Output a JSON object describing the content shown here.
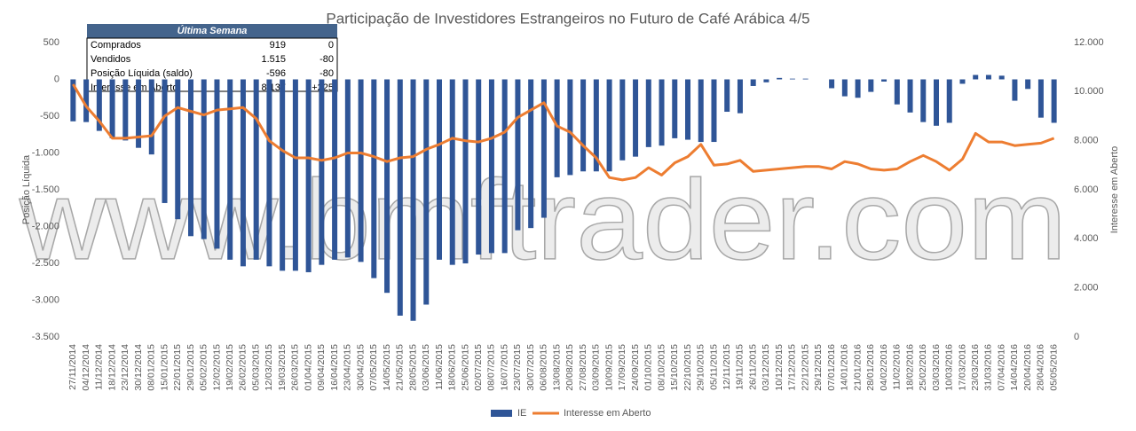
{
  "chart_data": {
    "type": "bar_line",
    "title": "Participação de Investidores Estrangeiros no Futuro de Café Arábica 4/5",
    "watermark": "www.bmftrader.com",
    "y_label": "Posição Líquida",
    "y2_label": "Interesse em Aberto",
    "categories": [
      "27/11/2014",
      "04/12/2014",
      "11/12/2014",
      "18/12/2014",
      "23/12/2014",
      "30/12/2014",
      "08/01/2015",
      "15/01/2015",
      "22/01/2015",
      "29/01/2015",
      "05/02/2015",
      "12/02/2015",
      "19/02/2015",
      "26/02/2015",
      "05/03/2015",
      "12/03/2015",
      "19/03/2015",
      "26/03/2015",
      "01/04/2015",
      "09/04/2015",
      "16/04/2015",
      "23/04/2015",
      "30/04/2015",
      "07/05/2015",
      "14/05/2015",
      "21/05/2015",
      "28/05/2015",
      "03/06/2015",
      "11/06/2015",
      "18/06/2015",
      "25/06/2015",
      "02/07/2015",
      "08/07/2015",
      "16/07/2015",
      "23/07/2015",
      "30/07/2015",
      "06/08/2015",
      "13/08/2015",
      "20/08/2015",
      "27/08/2015",
      "03/09/2015",
      "10/09/2015",
      "17/09/2015",
      "24/09/2015",
      "01/10/2015",
      "08/10/2015",
      "15/10/2015",
      "22/10/2015",
      "29/10/2015",
      "05/11/2015",
      "12/11/2015",
      "19/11/2015",
      "26/11/2015",
      "03/12/2015",
      "10/12/2015",
      "17/12/2015",
      "22/12/2015",
      "29/12/2015",
      "07/01/2016",
      "14/01/2016",
      "21/01/2016",
      "28/01/2016",
      "04/02/2016",
      "11/02/2016",
      "18/02/2016",
      "25/02/2016",
      "03/03/2016",
      "10/03/2016",
      "17/03/2016",
      "23/03/2016",
      "31/03/2016",
      "07/04/2016",
      "14/04/2016",
      "20/04/2016",
      "28/04/2016",
      "05/05/2016"
    ],
    "series": [
      {
        "name": "IE",
        "type": "bar",
        "color": "#2f5597",
        "values": [
          -570,
          -580,
          -700,
          -800,
          -830,
          -930,
          -1020,
          -1680,
          -1900,
          -2130,
          -2170,
          -2300,
          -2450,
          -2540,
          -2450,
          -2540,
          -2600,
          -2600,
          -2620,
          -2520,
          -2450,
          -2420,
          -2480,
          -2700,
          -2900,
          -3210,
          -3280,
          -3060,
          -2450,
          -2520,
          -2500,
          -2380,
          -2360,
          -2360,
          -2050,
          -2020,
          -1880,
          -1330,
          -1300,
          -1250,
          -1250,
          -1250,
          -1100,
          -1050,
          -920,
          -900,
          -800,
          -820,
          -850,
          -850,
          -440,
          -460,
          -90,
          -40,
          20,
          10,
          10,
          0,
          -120,
          -230,
          -250,
          -170,
          -30,
          -340,
          -450,
          -580,
          -630,
          -590,
          -60,
          60,
          60,
          50,
          -290,
          -130,
          -520,
          -590
        ]
      },
      {
        "name": "Interesse em Aberto",
        "type": "line",
        "axis": "y2",
        "color": "#ed7d31",
        "values": [
          10300,
          9400,
          8800,
          8100,
          8100,
          8150,
          8200,
          9000,
          9350,
          9200,
          9050,
          9250,
          9300,
          9350,
          8900,
          8000,
          7600,
          7300,
          7300,
          7200,
          7300,
          7500,
          7500,
          7350,
          7150,
          7300,
          7350,
          7650,
          7850,
          8100,
          8000,
          7950,
          8100,
          8350,
          8950,
          9250,
          9550,
          8600,
          8350,
          7800,
          7300,
          6500,
          6400,
          6500,
          6900,
          6600,
          7100,
          7350,
          7850,
          7000,
          7050,
          7200,
          6750,
          6800,
          6850,
          6900,
          6950,
          6950,
          6850,
          7150,
          7050,
          6850,
          6800,
          6850,
          7150,
          7400,
          7150,
          6800,
          7250,
          8300,
          7950,
          7950,
          7800,
          7850,
          7900,
          8100
        ]
      }
    ],
    "ylim": [
      -3500,
      500
    ],
    "yticks": [
      500,
      0,
      -500,
      {
        "value": -1000,
        "label": "-1.000"
      },
      {
        "value": -1500,
        "label": "-1.500"
      },
      {
        "value": -2000,
        "label": "-2.000"
      },
      {
        "value": -2500,
        "label": "-2.500"
      },
      {
        "value": -3000,
        "label": "-3.000"
      },
      {
        "value": -3500,
        "label": "-3.500"
      }
    ],
    "y2lim": [
      0,
      12000
    ],
    "y2ticks": [
      0,
      {
        "value": 2000,
        "label": "2.000"
      },
      {
        "value": 4000,
        "label": "4.000"
      },
      {
        "value": 6000,
        "label": "6.000"
      },
      {
        "value": 8000,
        "label": "8.000"
      },
      {
        "value": 10000,
        "label": "10.000"
      },
      {
        "value": 12000,
        "label": "12.000"
      }
    ],
    "grid": false,
    "legend": "bottom"
  },
  "table": {
    "header": "Última Semana",
    "rows": [
      [
        "Comprados",
        "919",
        "0"
      ],
      [
        "Vendidos",
        "1.515",
        "-80"
      ],
      [
        "Posição Líquida (saldo)",
        "-596",
        "-80"
      ],
      [
        "Interesse em Aberto",
        "8.137",
        "+225"
      ]
    ]
  }
}
